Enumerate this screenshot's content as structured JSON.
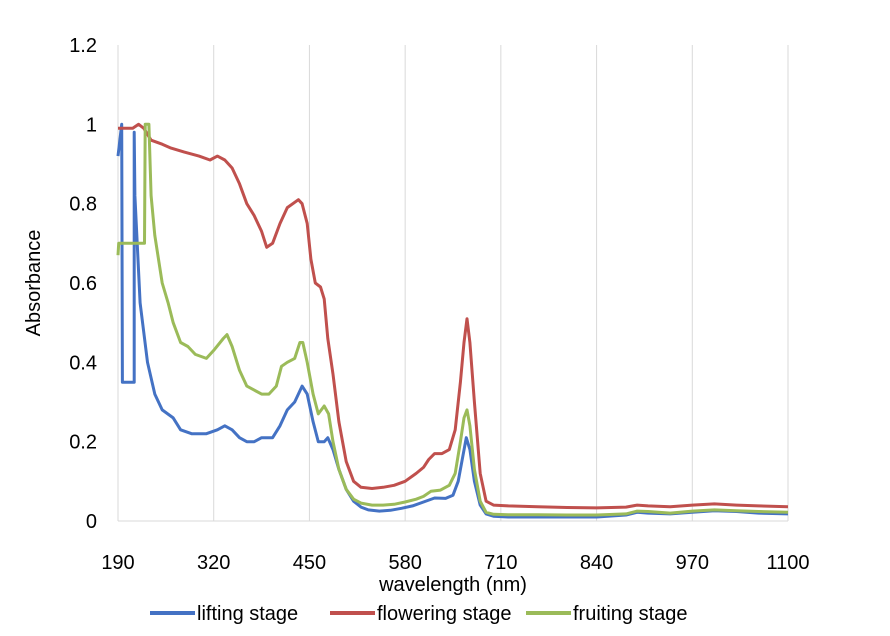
{
  "chart_data": {
    "type": "line",
    "title": "",
    "xlabel": "wavelength (nm)",
    "ylabel": "Absorbance",
    "xlim": [
      190,
      1100
    ],
    "ylim": [
      0,
      1.2
    ],
    "x_ticks": [
      190,
      320,
      450,
      580,
      710,
      840,
      970,
      1100
    ],
    "x_tick_labels": [
      "190",
      "320",
      "450",
      "580",
      "710",
      "840",
      "970",
      "1100"
    ],
    "y_ticks": [
      0,
      0.2,
      0.4,
      0.6,
      0.8,
      1,
      1.2
    ],
    "y_tick_labels": [
      "0",
      "0.2",
      "0.4",
      "0.6",
      "0.8",
      "1",
      "1.2"
    ],
    "grid": "vertical",
    "legend_position": "bottom",
    "series": [
      {
        "name": "lifting stage",
        "color": "#4472C4",
        "points": [
          [
            190,
            0.92
          ],
          [
            195,
            1.0
          ],
          [
            196,
            0.35
          ],
          [
            212,
            0.35
          ],
          [
            212,
            0.98
          ],
          [
            213,
            0.82
          ],
          [
            220,
            0.55
          ],
          [
            230,
            0.4
          ],
          [
            240,
            0.32
          ],
          [
            250,
            0.28
          ],
          [
            265,
            0.26
          ],
          [
            275,
            0.23
          ],
          [
            290,
            0.22
          ],
          [
            310,
            0.22
          ],
          [
            325,
            0.23
          ],
          [
            335,
            0.24
          ],
          [
            345,
            0.23
          ],
          [
            355,
            0.21
          ],
          [
            365,
            0.2
          ],
          [
            375,
            0.2
          ],
          [
            385,
            0.21
          ],
          [
            400,
            0.21
          ],
          [
            410,
            0.24
          ],
          [
            420,
            0.28
          ],
          [
            430,
            0.3
          ],
          [
            440,
            0.34
          ],
          [
            447,
            0.32
          ],
          [
            455,
            0.25
          ],
          [
            462,
            0.2
          ],
          [
            470,
            0.2
          ],
          [
            475,
            0.21
          ],
          [
            482,
            0.18
          ],
          [
            490,
            0.13
          ],
          [
            500,
            0.08
          ],
          [
            510,
            0.05
          ],
          [
            520,
            0.035
          ],
          [
            530,
            0.028
          ],
          [
            545,
            0.025
          ],
          [
            560,
            0.027
          ],
          [
            575,
            0.032
          ],
          [
            590,
            0.038
          ],
          [
            605,
            0.048
          ],
          [
            620,
            0.058
          ],
          [
            635,
            0.057
          ],
          [
            645,
            0.065
          ],
          [
            652,
            0.1
          ],
          [
            658,
            0.16
          ],
          [
            663,
            0.21
          ],
          [
            668,
            0.18
          ],
          [
            674,
            0.1
          ],
          [
            682,
            0.04
          ],
          [
            690,
            0.018
          ],
          [
            700,
            0.012
          ],
          [
            720,
            0.01
          ],
          [
            760,
            0.01
          ],
          [
            800,
            0.01
          ],
          [
            840,
            0.01
          ],
          [
            880,
            0.015
          ],
          [
            895,
            0.022
          ],
          [
            910,
            0.02
          ],
          [
            940,
            0.018
          ],
          [
            970,
            0.022
          ],
          [
            1000,
            0.026
          ],
          [
            1030,
            0.024
          ],
          [
            1060,
            0.02
          ],
          [
            1100,
            0.018
          ]
        ]
      },
      {
        "name": "flowering stage",
        "color": "#C0504D",
        "points": [
          [
            190,
            0.99
          ],
          [
            200,
            0.99
          ],
          [
            210,
            0.99
          ],
          [
            218,
            1.0
          ],
          [
            225,
            0.99
          ],
          [
            235,
            0.96
          ],
          [
            250,
            0.95
          ],
          [
            262,
            0.94
          ],
          [
            280,
            0.93
          ],
          [
            300,
            0.92
          ],
          [
            315,
            0.91
          ],
          [
            325,
            0.92
          ],
          [
            335,
            0.91
          ],
          [
            345,
            0.89
          ],
          [
            355,
            0.85
          ],
          [
            365,
            0.8
          ],
          [
            375,
            0.77
          ],
          [
            385,
            0.73
          ],
          [
            392,
            0.69
          ],
          [
            400,
            0.7
          ],
          [
            410,
            0.75
          ],
          [
            420,
            0.79
          ],
          [
            435,
            0.81
          ],
          [
            440,
            0.8
          ],
          [
            447,
            0.75
          ],
          [
            452,
            0.66
          ],
          [
            458,
            0.6
          ],
          [
            465,
            0.59
          ],
          [
            470,
            0.56
          ],
          [
            475,
            0.46
          ],
          [
            482,
            0.37
          ],
          [
            490,
            0.25
          ],
          [
            500,
            0.15
          ],
          [
            510,
            0.1
          ],
          [
            520,
            0.085
          ],
          [
            535,
            0.082
          ],
          [
            550,
            0.085
          ],
          [
            565,
            0.09
          ],
          [
            580,
            0.1
          ],
          [
            595,
            0.12
          ],
          [
            605,
            0.135
          ],
          [
            612,
            0.155
          ],
          [
            620,
            0.17
          ],
          [
            630,
            0.17
          ],
          [
            640,
            0.18
          ],
          [
            648,
            0.23
          ],
          [
            655,
            0.35
          ],
          [
            660,
            0.45
          ],
          [
            664,
            0.51
          ],
          [
            668,
            0.45
          ],
          [
            674,
            0.3
          ],
          [
            682,
            0.12
          ],
          [
            690,
            0.05
          ],
          [
            700,
            0.04
          ],
          [
            720,
            0.038
          ],
          [
            760,
            0.036
          ],
          [
            800,
            0.034
          ],
          [
            840,
            0.033
          ],
          [
            880,
            0.035
          ],
          [
            895,
            0.04
          ],
          [
            910,
            0.038
          ],
          [
            940,
            0.036
          ],
          [
            970,
            0.04
          ],
          [
            1000,
            0.043
          ],
          [
            1030,
            0.04
          ],
          [
            1060,
            0.038
          ],
          [
            1100,
            0.036
          ]
        ]
      },
      {
        "name": "fruiting stage",
        "color": "#9BBB59",
        "points": [
          [
            190,
            0.67
          ],
          [
            191,
            0.7
          ],
          [
            205,
            0.7
          ],
          [
            226,
            0.7
          ],
          [
            227,
            1.0
          ],
          [
            232,
            1.0
          ],
          [
            235,
            0.82
          ],
          [
            240,
            0.72
          ],
          [
            250,
            0.6
          ],
          [
            258,
            0.55
          ],
          [
            265,
            0.5
          ],
          [
            275,
            0.45
          ],
          [
            285,
            0.44
          ],
          [
            295,
            0.42
          ],
          [
            310,
            0.41
          ],
          [
            320,
            0.43
          ],
          [
            333,
            0.46
          ],
          [
            338,
            0.47
          ],
          [
            345,
            0.44
          ],
          [
            355,
            0.38
          ],
          [
            365,
            0.34
          ],
          [
            375,
            0.33
          ],
          [
            385,
            0.32
          ],
          [
            395,
            0.32
          ],
          [
            405,
            0.34
          ],
          [
            412,
            0.39
          ],
          [
            420,
            0.4
          ],
          [
            430,
            0.41
          ],
          [
            437,
            0.45
          ],
          [
            441,
            0.45
          ],
          [
            447,
            0.4
          ],
          [
            455,
            0.32
          ],
          [
            462,
            0.27
          ],
          [
            470,
            0.29
          ],
          [
            476,
            0.27
          ],
          [
            482,
            0.2
          ],
          [
            490,
            0.13
          ],
          [
            500,
            0.08
          ],
          [
            510,
            0.055
          ],
          [
            520,
            0.045
          ],
          [
            535,
            0.04
          ],
          [
            550,
            0.04
          ],
          [
            565,
            0.042
          ],
          [
            580,
            0.048
          ],
          [
            595,
            0.055
          ],
          [
            605,
            0.062
          ],
          [
            615,
            0.075
          ],
          [
            628,
            0.078
          ],
          [
            640,
            0.09
          ],
          [
            648,
            0.12
          ],
          [
            655,
            0.2
          ],
          [
            660,
            0.26
          ],
          [
            664,
            0.28
          ],
          [
            668,
            0.24
          ],
          [
            674,
            0.13
          ],
          [
            682,
            0.05
          ],
          [
            690,
            0.022
          ],
          [
            700,
            0.017
          ],
          [
            720,
            0.016
          ],
          [
            760,
            0.016
          ],
          [
            800,
            0.015
          ],
          [
            840,
            0.015
          ],
          [
            880,
            0.018
          ],
          [
            895,
            0.025
          ],
          [
            910,
            0.024
          ],
          [
            940,
            0.02
          ],
          [
            970,
            0.025
          ],
          [
            1000,
            0.028
          ],
          [
            1030,
            0.026
          ],
          [
            1060,
            0.024
          ],
          [
            1100,
            0.022
          ]
        ]
      }
    ]
  }
}
